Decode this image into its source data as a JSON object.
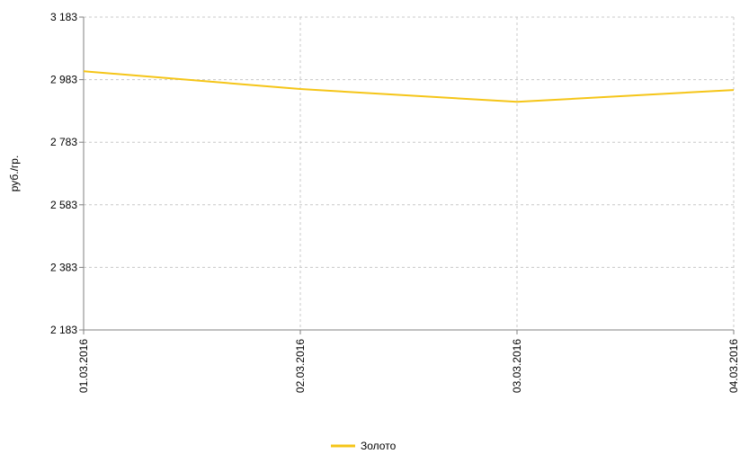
{
  "chart_data": {
    "type": "line",
    "ylabel": "руб./гр.",
    "x": [
      "01.03.2016",
      "02.03.2016",
      "03.03.2016",
      "04.03.2016"
    ],
    "y_ticks": [
      "2 183",
      "2 383",
      "2 583",
      "2 783",
      "2 983",
      "3 183"
    ],
    "ylim": [
      2183,
      3183
    ],
    "grid": true,
    "legend_position": "bottom-center",
    "series": [
      {
        "name": "Золото",
        "color": "#f5c518",
        "values": [
          3010,
          2953,
          2912,
          2950
        ]
      }
    ]
  }
}
